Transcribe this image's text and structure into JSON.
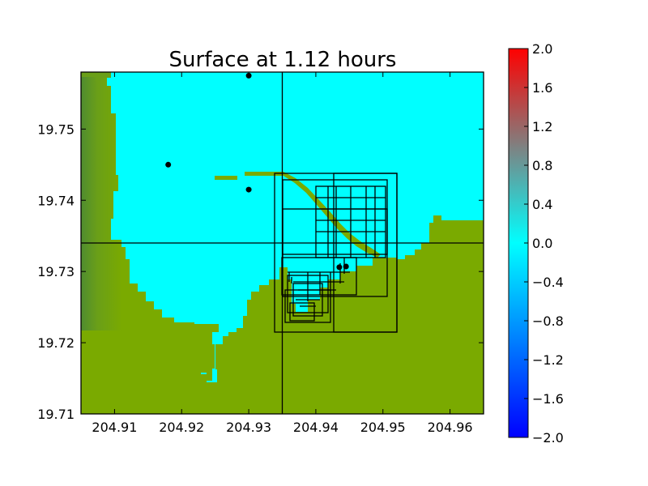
{
  "chart_data": {
    "type": "heatmap",
    "title": "Surface at 1.12 hours",
    "xlabel": "",
    "ylabel": "",
    "xlim": [
      204.905,
      204.965
    ],
    "ylim": [
      19.71,
      19.758
    ],
    "x_ticks": [
      "204.91",
      "204.92",
      "204.93",
      "204.94",
      "204.95",
      "204.96"
    ],
    "y_ticks": [
      "19.71",
      "19.72",
      "19.73",
      "19.74",
      "19.75"
    ],
    "grid": false,
    "colorbar": {
      "range": [
        -2.0,
        2.0
      ],
      "ticks": [
        "2.0",
        "1.6",
        "1.2",
        "0.8",
        "0.4",
        "0.0",
        "−0.4",
        "−0.8",
        "−1.2",
        "−1.6",
        "−2.0"
      ],
      "colors": [
        "#0000ff",
        "#00ffff",
        "#ff0000"
      ],
      "mid_color": "#808080"
    },
    "colors": {
      "water": "#00ffff",
      "land": "#7aaa00",
      "land_dark": "#4f8c30"
    },
    "gauges": [
      {
        "x": 204.93,
        "y": 19.7575
      },
      {
        "x": 204.918,
        "y": 19.745
      },
      {
        "x": 204.93,
        "y": 19.7415
      },
      {
        "x": 204.9435,
        "y": 19.7306
      },
      {
        "x": 204.9445,
        "y": 19.7307
      }
    ],
    "grid_lines": {
      "x": [
        204.935
      ],
      "y": [
        19.734
      ]
    }
  }
}
